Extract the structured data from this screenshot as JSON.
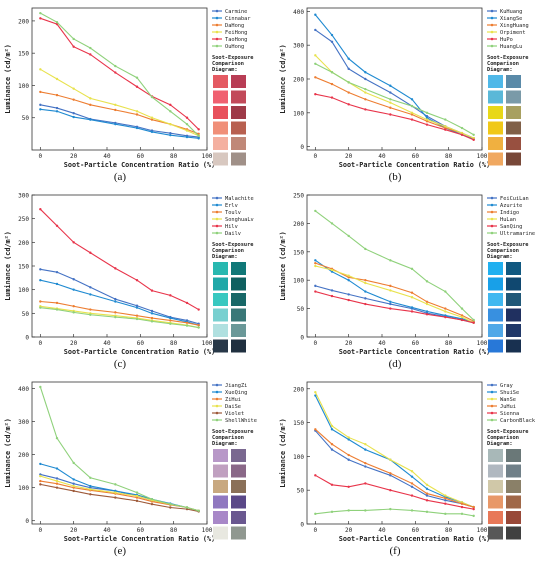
{
  "figure": {
    "x_axis_label": "Soot-Particle Concentration Ratio  (%)",
    "y_axis_label": "Luminance  (cd/m²)",
    "swatch_title_line1": "Soot-Exposure",
    "swatch_title_line2": "Comparison",
    "swatch_title_line3": "Diagram:"
  },
  "chart_data": [
    {
      "type": "line",
      "panel_label": "(a)",
      "xlabel": "Soot-Particle Concentration Ratio  (%)",
      "ylabel": "Luminance  (cd/m²)",
      "xlim": [
        -5,
        100
      ],
      "ylim": [
        0,
        220
      ],
      "x_ticks": [
        0,
        20,
        40,
        60,
        80,
        100
      ],
      "y_ticks": [
        50,
        100,
        150,
        200
      ],
      "x": [
        0,
        10,
        20,
        30,
        45,
        58,
        67,
        78,
        88,
        95
      ],
      "series": [
        {
          "name": "Carmine",
          "color": "#4472c4",
          "values": [
            70,
            65,
            57,
            48,
            42,
            36,
            30,
            26,
            22,
            20
          ]
        },
        {
          "name": "Cinnabar",
          "color": "#1f8ad1",
          "values": [
            63,
            60,
            51,
            47,
            40,
            34,
            28,
            23,
            20,
            18
          ]
        },
        {
          "name": "DaHong",
          "color": "#ed7d31",
          "values": [
            90,
            85,
            78,
            70,
            62,
            55,
            47,
            40,
            32,
            25
          ]
        },
        {
          "name": "FeiHong",
          "color": "#e8e24d",
          "values": [
            125,
            110,
            95,
            80,
            70,
            60,
            50,
            40,
            30,
            22
          ]
        },
        {
          "name": "TaoHong",
          "color": "#e8344a",
          "values": [
            204,
            195,
            160,
            148,
            120,
            98,
            83,
            70,
            50,
            32
          ]
        },
        {
          "name": "OuHong",
          "color": "#8fd17b",
          "values": [
            212,
            198,
            172,
            158,
            130,
            112,
            82,
            60,
            40,
            22
          ]
        }
      ],
      "swatches": [
        [
          "#e45a62",
          "#b83d55"
        ],
        [
          "#f06070",
          "#c24a5a"
        ],
        [
          "#e8515c",
          "#9e3a48"
        ],
        [
          "#f08f78",
          "#b86050"
        ],
        [
          "#f4b0a0",
          "#c08878"
        ],
        [
          "#d8c8c0",
          "#a09088"
        ]
      ]
    },
    {
      "type": "line",
      "panel_label": "(b)",
      "xlabel": "Soot-Particle Concentration Ratio  (%)",
      "ylabel": "Luminance  (cd/m²)",
      "xlim": [
        -5,
        100
      ],
      "ylim": [
        -10,
        410
      ],
      "x_ticks": [
        0,
        20,
        40,
        60,
        80,
        100
      ],
      "y_ticks": [
        0,
        100,
        200,
        300,
        400
      ],
      "x": [
        0,
        10,
        20,
        30,
        45,
        58,
        67,
        78,
        88,
        95
      ],
      "series": [
        {
          "name": "KuHuang",
          "color": "#4472c4",
          "values": [
            345,
            310,
            230,
            200,
            160,
            120,
            90,
            60,
            40,
            25
          ]
        },
        {
          "name": "XiangSe",
          "color": "#1f8ad1",
          "values": [
            390,
            330,
            260,
            220,
            180,
            140,
            85,
            55,
            35,
            22
          ]
        },
        {
          "name": "XingHuang",
          "color": "#ed7d31",
          "values": [
            205,
            185,
            160,
            140,
            115,
            95,
            75,
            55,
            40,
            25
          ]
        },
        {
          "name": "Orpiment",
          "color": "#e8e24d",
          "values": [
            270,
            220,
            190,
            160,
            130,
            100,
            80,
            60,
            40,
            25
          ]
        },
        {
          "name": "HuPo",
          "color": "#e8344a",
          "values": [
            155,
            145,
            125,
            110,
            95,
            80,
            65,
            50,
            35,
            20
          ]
        },
        {
          "name": "HuangLu",
          "color": "#8fd17b",
          "values": [
            245,
            220,
            190,
            170,
            140,
            120,
            100,
            80,
            55,
            35
          ]
        }
      ],
      "swatches": [
        [
          "#4fb8e8",
          "#5a8aa8"
        ],
        [
          "#5ab8d8",
          "#7a9aa8"
        ],
        [
          "#e8d818",
          "#a8a060"
        ],
        [
          "#f0c818",
          "#806048"
        ],
        [
          "#f0b040",
          "#985040"
        ],
        [
          "#f0a860",
          "#784838"
        ]
      ]
    },
    {
      "type": "line",
      "panel_label": "(c)",
      "xlabel": "Soot-Particle Concentration Ratio  (%)",
      "ylabel": "Luminance  (cd/m²)",
      "xlim": [
        -5,
        100
      ],
      "ylim": [
        0,
        300
      ],
      "x_ticks": [
        0,
        20,
        40,
        60,
        80,
        100
      ],
      "y_ticks": [
        0,
        50,
        100,
        150,
        200,
        250,
        300
      ],
      "x": [
        0,
        10,
        20,
        30,
        45,
        58,
        67,
        78,
        88,
        95
      ],
      "series": [
        {
          "name": "Malachite",
          "color": "#4472c4",
          "values": [
            143,
            137,
            122,
            105,
            80,
            66,
            55,
            42,
            35,
            28
          ]
        },
        {
          "name": "Erlv",
          "color": "#1f8ad1",
          "values": [
            120,
            112,
            100,
            90,
            75,
            62,
            50,
            40,
            32,
            25
          ]
        },
        {
          "name": "Toulv",
          "color": "#ed7d31",
          "values": [
            75,
            72,
            65,
            58,
            52,
            45,
            40,
            35,
            30,
            25
          ]
        },
        {
          "name": "SonghuaLv",
          "color": "#e8e24d",
          "values": [
            65,
            60,
            55,
            50,
            45,
            40,
            35,
            30,
            25,
            20
          ]
        },
        {
          "name": "Hilv",
          "color": "#e8344a",
          "values": [
            270,
            235,
            200,
            178,
            145,
            120,
            98,
            88,
            72,
            58
          ]
        },
        {
          "name": "Dailv",
          "color": "#8fd17b",
          "values": [
            62,
            58,
            52,
            47,
            42,
            38,
            33,
            28,
            24,
            20
          ]
        }
      ],
      "swatches": [
        [
          "#28b8b0",
          "#107878"
        ],
        [
          "#20a8a8",
          "#0f6060"
        ],
        [
          "#38c8c0",
          "#186868"
        ],
        [
          "#78d0d0",
          "#3a7878"
        ],
        [
          "#b0e0e0",
          "#6a9898"
        ],
        [
          "#283848",
          "#203040"
        ]
      ]
    },
    {
      "type": "line",
      "panel_label": "(d)",
      "xlabel": "Soot-Particle Concentration Ratio  (%)",
      "ylabel": "Luminance  (cd/m²)",
      "xlim": [
        -5,
        100
      ],
      "ylim": [
        0,
        250
      ],
      "x_ticks": [
        0,
        20,
        40,
        60,
        80,
        100
      ],
      "y_ticks": [
        0,
        50,
        100,
        150,
        200,
        250
      ],
      "x": [
        0,
        10,
        20,
        30,
        45,
        58,
        67,
        78,
        88,
        95
      ],
      "series": [
        {
          "name": "FeiCuiLan",
          "color": "#4472c4",
          "values": [
            90,
            82,
            75,
            68,
            58,
            50,
            42,
            36,
            30,
            25
          ]
        },
        {
          "name": "Azurite",
          "color": "#1f8ad1",
          "values": [
            135,
            115,
            100,
            80,
            62,
            52,
            45,
            38,
            32,
            26
          ]
        },
        {
          "name": "Indigo",
          "color": "#ed7d31",
          "values": [
            130,
            120,
            105,
            100,
            90,
            78,
            62,
            50,
            38,
            28
          ]
        },
        {
          "name": "HuLan",
          "color": "#e8e24d",
          "values": [
            125,
            118,
            108,
            95,
            82,
            70,
            58,
            45,
            35,
            25
          ]
        },
        {
          "name": "SanQing",
          "color": "#e8344a",
          "values": [
            80,
            72,
            65,
            58,
            50,
            45,
            40,
            35,
            30,
            25
          ]
        },
        {
          "name": "Ultramarine",
          "color": "#8fd17b",
          "values": [
            222,
            200,
            178,
            155,
            135,
            120,
            98,
            80,
            50,
            30
          ]
        }
      ],
      "swatches": [
        [
          "#20b0f0",
          "#105880"
        ],
        [
          "#18a0e8",
          "#104870"
        ],
        [
          "#40b8f0",
          "#205878"
        ],
        [
          "#3890e0",
          "#203060"
        ],
        [
          "#50a8e8",
          "#203868"
        ],
        [
          "#2878d8",
          "#183050"
        ]
      ]
    },
    {
      "type": "line",
      "panel_label": "(e)",
      "xlabel": "Soot-Particle Concentration Ratio  (%)",
      "ylabel": "Luminance  (cd/m²)",
      "xlim": [
        -5,
        100
      ],
      "ylim": [
        -10,
        420
      ],
      "x_ticks": [
        0,
        20,
        40,
        60,
        80,
        100
      ],
      "y_ticks": [
        0,
        100,
        200,
        300,
        400
      ],
      "x": [
        0,
        10,
        20,
        30,
        45,
        58,
        67,
        78,
        88,
        95
      ],
      "series": [
        {
          "name": "JiangZi",
          "color": "#4472c4",
          "values": [
            140,
            128,
            112,
            100,
            90,
            75,
            62,
            50,
            40,
            30
          ]
        },
        {
          "name": "XueQing",
          "color": "#1f8ad1",
          "values": [
            172,
            158,
            125,
            105,
            90,
            78,
            65,
            52,
            40,
            30
          ]
        },
        {
          "name": "ZiHui",
          "color": "#ed7d31",
          "values": [
            120,
            112,
            100,
            92,
            82,
            70,
            58,
            48,
            40,
            30
          ]
        },
        {
          "name": "DaiSe",
          "color": "#e8e24d",
          "values": [
            135,
            120,
            105,
            95,
            85,
            75,
            62,
            50,
            40,
            30
          ]
        },
        {
          "name": "Violet",
          "color": "#9e5a3a",
          "values": [
            110,
            100,
            90,
            80,
            70,
            60,
            50,
            40,
            35,
            28
          ]
        },
        {
          "name": "ShellWhite",
          "color": "#8fd17b",
          "values": [
            405,
            250,
            175,
            130,
            110,
            85,
            65,
            50,
            40,
            30
          ]
        }
      ],
      "swatches": [
        [
          "#b898c8",
          "#7a6890"
        ],
        [
          "#c0a0c0",
          "#8a6888"
        ],
        [
          "#c8a880",
          "#8a7058"
        ],
        [
          "#9078c0",
          "#5a4888"
        ],
        [
          "#a888c8",
          "#6a5890"
        ],
        [
          "#e8e8e0",
          "#909890"
        ]
      ]
    },
    {
      "type": "line",
      "panel_label": "(f)",
      "xlabel": "Soot-Particle Concentration Ratio  (%)",
      "ylabel": "Luminance  (cd/m²)",
      "xlim": [
        -5,
        100
      ],
      "ylim": [
        0,
        210
      ],
      "x_ticks": [
        0,
        20,
        40,
        60,
        80,
        100
      ],
      "y_ticks": [
        0,
        50,
        100,
        150,
        200
      ],
      "x": [
        0,
        10,
        20,
        30,
        45,
        58,
        67,
        78,
        88,
        95
      ],
      "series": [
        {
          "name": "Gray",
          "color": "#4472c4",
          "values": [
            138,
            110,
            95,
            85,
            72,
            55,
            42,
            35,
            30,
            25
          ]
        },
        {
          "name": "ShuiSe",
          "color": "#1f8ad1",
          "values": [
            190,
            140,
            125,
            110,
            95,
            70,
            52,
            40,
            32,
            25
          ]
        },
        {
          "name": "WanSe",
          "color": "#e8e24d",
          "values": [
            195,
            145,
            128,
            118,
            95,
            78,
            58,
            42,
            32,
            25
          ]
        },
        {
          "name": "JuHui",
          "color": "#ed7d31",
          "values": [
            140,
            118,
            102,
            90,
            75,
            60,
            45,
            38,
            30,
            25
          ]
        },
        {
          "name": "Sienna",
          "color": "#e8344a",
          "values": [
            72,
            58,
            55,
            60,
            50,
            42,
            35,
            30,
            25,
            22
          ]
        },
        {
          "name": "CarbonBlack",
          "color": "#8fd17b",
          "values": [
            15,
            18,
            20,
            20,
            22,
            20,
            18,
            15,
            15,
            12
          ]
        }
      ],
      "swatches": [
        [
          "#a8b8b8",
          "#6a7878"
        ],
        [
          "#b0b8c0",
          "#708088"
        ],
        [
          "#d0c8a8",
          "#8a8068"
        ],
        [
          "#e89868",
          "#a06848"
        ],
        [
          "#e87858",
          "#984838"
        ],
        [
          "#585858",
          "#404040"
        ]
      ]
    }
  ]
}
